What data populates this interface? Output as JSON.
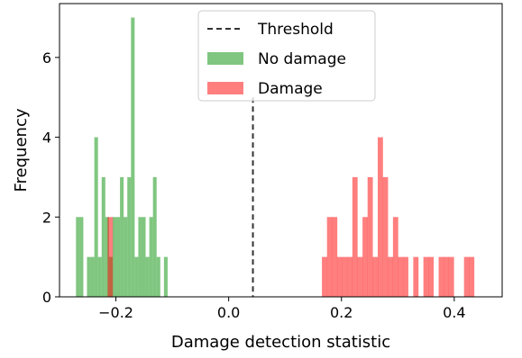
{
  "chart_data": {
    "type": "histogram",
    "xlabel": "Damage detection statistic",
    "ylabel": "Frequency",
    "xlim": [
      -0.3,
      0.485
    ],
    "ylim": [
      0,
      7.35
    ],
    "xticks": [
      -0.2,
      0.0,
      0.2,
      0.4
    ],
    "xtick_labels": [
      "−0.2",
      "0.0",
      "0.2",
      "0.4"
    ],
    "yticks": [
      0,
      2,
      4,
      6
    ],
    "ytick_labels": [
      "0",
      "2",
      "4",
      "6"
    ],
    "grid": false,
    "legend_position": "upper center",
    "threshold": {
      "name": "Threshold",
      "x": 0.043,
      "style": "dashed",
      "color": "#333333"
    },
    "series": [
      {
        "name": "No damage",
        "color": "#2ca02c",
        "alpha": 0.6,
        "bin_width": 0.0065,
        "bins": [
          {
            "x": -0.2675,
            "count": 2
          },
          {
            "x": -0.261,
            "count": 2
          },
          {
            "x": -0.2545,
            "count": 0
          },
          {
            "x": -0.248,
            "count": 1
          },
          {
            "x": -0.2415,
            "count": 1
          },
          {
            "x": -0.235,
            "count": 4
          },
          {
            "x": -0.2285,
            "count": 1
          },
          {
            "x": -0.222,
            "count": 3
          },
          {
            "x": -0.2155,
            "count": 2
          },
          {
            "x": -0.209,
            "count": 1
          },
          {
            "x": -0.2025,
            "count": 2
          },
          {
            "x": -0.196,
            "count": 2
          },
          {
            "x": -0.1895,
            "count": 3
          },
          {
            "x": -0.183,
            "count": 2
          },
          {
            "x": -0.1765,
            "count": 3
          },
          {
            "x": -0.17,
            "count": 7
          },
          {
            "x": -0.1635,
            "count": 1
          },
          {
            "x": -0.157,
            "count": 2
          },
          {
            "x": -0.1505,
            "count": 2
          },
          {
            "x": -0.144,
            "count": 1
          },
          {
            "x": -0.1375,
            "count": 2
          },
          {
            "x": -0.131,
            "count": 3
          },
          {
            "x": -0.1245,
            "count": 1
          },
          {
            "x": -0.118,
            "count": 0
          },
          {
            "x": -0.1115,
            "count": 1
          }
        ]
      },
      {
        "name": "Damage",
        "color": "#ff0000",
        "alpha": 0.5,
        "bin_width": 0.0093,
        "bins": [
          {
            "x": -0.21,
            "count": 2
          },
          {
            "x": 0.17,
            "count": 1
          },
          {
            "x": 0.179,
            "count": 2
          },
          {
            "x": 0.188,
            "count": 2
          },
          {
            "x": 0.197,
            "count": 1
          },
          {
            "x": 0.206,
            "count": 1
          },
          {
            "x": 0.215,
            "count": 1
          },
          {
            "x": 0.224,
            "count": 3
          },
          {
            "x": 0.233,
            "count": 1
          },
          {
            "x": 0.242,
            "count": 2
          },
          {
            "x": 0.251,
            "count": 3
          },
          {
            "x": 0.26,
            "count": 1
          },
          {
            "x": 0.269,
            "count": 4
          },
          {
            "x": 0.278,
            "count": 3
          },
          {
            "x": 0.287,
            "count": 1
          },
          {
            "x": 0.296,
            "count": 2
          },
          {
            "x": 0.305,
            "count": 1
          },
          {
            "x": 0.314,
            "count": 1
          },
          {
            "x": 0.323,
            "count": 0
          },
          {
            "x": 0.332,
            "count": 1
          },
          {
            "x": 0.341,
            "count": 0
          },
          {
            "x": 0.35,
            "count": 1
          },
          {
            "x": 0.359,
            "count": 1
          },
          {
            "x": 0.368,
            "count": 0
          },
          {
            "x": 0.377,
            "count": 1
          },
          {
            "x": 0.386,
            "count": 1
          },
          {
            "x": 0.395,
            "count": 1
          },
          {
            "x": 0.404,
            "count": 0
          },
          {
            "x": 0.413,
            "count": 0
          },
          {
            "x": 0.422,
            "count": 1
          },
          {
            "x": 0.431,
            "count": 1
          }
        ]
      }
    ]
  }
}
